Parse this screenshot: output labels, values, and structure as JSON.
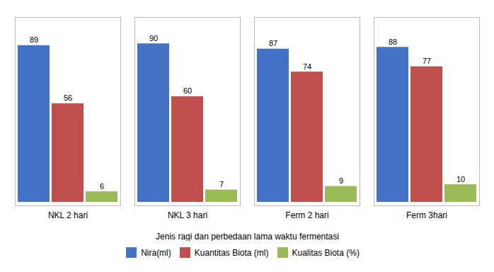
{
  "chart_data": {
    "type": "bar",
    "categories": [
      "NKL 2 hari",
      "NKL 3 hari",
      "Ferm 2 hari",
      "Ferm 3hari"
    ],
    "series": [
      {
        "name": "Nira(ml)",
        "color": "#4472C4",
        "values": [
          89,
          90,
          87,
          88
        ]
      },
      {
        "name": "Kuantitas Biota (ml)",
        "color": "#C0504D",
        "values": [
          56,
          60,
          74,
          77
        ]
      },
      {
        "name": "Kualitas Biota (%)",
        "color": "#9BBB59",
        "values": [
          6,
          7,
          9,
          10
        ]
      }
    ],
    "xlabel": "Jenis ragi dan perbedaan lama waktu fermentasi",
    "ylim": [
      -2,
      105
    ],
    "data_labels": true,
    "tick_labels": "x",
    "grid": false,
    "legend": "bottom"
  }
}
